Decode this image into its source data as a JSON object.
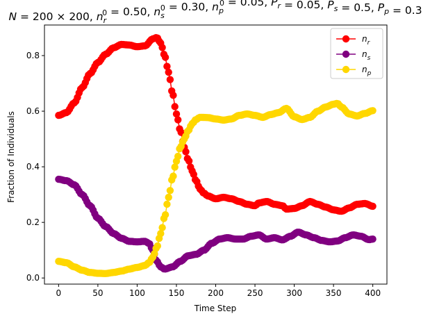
{
  "chart_data": {
    "type": "line",
    "title": "N = 200 × 200, n_r^0 = 0.50, n_s^0 = 0.30, n_p^0 = 0.05, P_r = 0.05, P_s = 0.5, P_p = 0.3",
    "title_parts": [
      {
        "t": "N",
        "i": true
      },
      {
        "t": " = 200 × 200, "
      },
      {
        "t": "n",
        "i": true
      },
      {
        "t": "r",
        "i": true,
        "sub": true
      },
      {
        "t": "0",
        "sup": true
      },
      {
        "t": " = 0.50, "
      },
      {
        "t": "n",
        "i": true
      },
      {
        "t": "s",
        "i": true,
        "sub": true
      },
      {
        "t": "0",
        "sup": true
      },
      {
        "t": " = 0.30, "
      },
      {
        "t": "n",
        "i": true
      },
      {
        "t": "p",
        "i": true,
        "sub": true
      },
      {
        "t": "0",
        "sup": true
      },
      {
        "t": " = 0.05, "
      },
      {
        "t": "P",
        "i": true
      },
      {
        "t": "r",
        "i": true,
        "sub": true
      },
      {
        "t": " = 0.05, "
      },
      {
        "t": "P",
        "i": true
      },
      {
        "t": "s",
        "i": true,
        "sub": true
      },
      {
        "t": " = 0.5, "
      },
      {
        "t": "P",
        "i": true
      },
      {
        "t": "p",
        "i": true,
        "sub": true
      },
      {
        "t": " = 0.3"
      }
    ],
    "xlabel": "Time Step",
    "ylabel": "Fraction of Individuals",
    "xlim": [
      -18,
      418
    ],
    "ylim": [
      -0.022,
      0.91
    ],
    "xticks": [
      0,
      50,
      100,
      150,
      200,
      250,
      300,
      350,
      400
    ],
    "xtick_labels": [
      "0",
      "50",
      "100",
      "150",
      "200",
      "250",
      "300",
      "350",
      "400"
    ],
    "yticks": [
      0.0,
      0.2,
      0.4,
      0.6,
      0.8
    ],
    "ytick_labels": [
      "0.0",
      "0.2",
      "0.4",
      "0.6",
      "0.8"
    ],
    "grid": false,
    "legend_position": "top-right",
    "series": [
      {
        "name": "n_r",
        "label_main": "n",
        "label_sub": "r",
        "color": "#ff0000",
        "points": [
          [
            0,
            0.585
          ],
          [
            10,
            0.595
          ],
          [
            20,
            0.63
          ],
          [
            30,
            0.685
          ],
          [
            40,
            0.735
          ],
          [
            50,
            0.775
          ],
          [
            60,
            0.805
          ],
          [
            70,
            0.828
          ],
          [
            80,
            0.84
          ],
          [
            90,
            0.838
          ],
          [
            100,
            0.832
          ],
          [
            110,
            0.835
          ],
          [
            120,
            0.86
          ],
          [
            125,
            0.865
          ],
          [
            130,
            0.845
          ],
          [
            135,
            0.8
          ],
          [
            140,
            0.74
          ],
          [
            145,
            0.665
          ],
          [
            150,
            0.59
          ],
          [
            155,
            0.53
          ],
          [
            160,
            0.47
          ],
          [
            165,
            0.425
          ],
          [
            170,
            0.385
          ],
          [
            175,
            0.35
          ],
          [
            180,
            0.32
          ],
          [
            185,
            0.305
          ],
          [
            190,
            0.295
          ],
          [
            200,
            0.285
          ],
          [
            210,
            0.29
          ],
          [
            220,
            0.285
          ],
          [
            230,
            0.275
          ],
          [
            240,
            0.265
          ],
          [
            250,
            0.26
          ],
          [
            255,
            0.27
          ],
          [
            265,
            0.275
          ],
          [
            275,
            0.265
          ],
          [
            285,
            0.26
          ],
          [
            290,
            0.248
          ],
          [
            300,
            0.25
          ],
          [
            310,
            0.26
          ],
          [
            320,
            0.275
          ],
          [
            330,
            0.265
          ],
          [
            340,
            0.255
          ],
          [
            350,
            0.245
          ],
          [
            360,
            0.24
          ],
          [
            370,
            0.252
          ],
          [
            380,
            0.265
          ],
          [
            390,
            0.268
          ],
          [
            400,
            0.258
          ]
        ]
      },
      {
        "name": "n_s",
        "label_main": "n",
        "label_sub": "s",
        "color": "#800080",
        "points": [
          [
            0,
            0.355
          ],
          [
            10,
            0.35
          ],
          [
            20,
            0.335
          ],
          [
            30,
            0.3
          ],
          [
            40,
            0.26
          ],
          [
            50,
            0.215
          ],
          [
            60,
            0.185
          ],
          [
            70,
            0.16
          ],
          [
            80,
            0.143
          ],
          [
            90,
            0.132
          ],
          [
            100,
            0.13
          ],
          [
            110,
            0.132
          ],
          [
            115,
            0.125
          ],
          [
            120,
            0.1
          ],
          [
            125,
            0.06
          ],
          [
            130,
            0.04
          ],
          [
            135,
            0.032
          ],
          [
            145,
            0.04
          ],
          [
            155,
            0.06
          ],
          [
            165,
            0.08
          ],
          [
            175,
            0.085
          ],
          [
            185,
            0.1
          ],
          [
            195,
            0.125
          ],
          [
            205,
            0.14
          ],
          [
            215,
            0.145
          ],
          [
            225,
            0.14
          ],
          [
            235,
            0.14
          ],
          [
            245,
            0.15
          ],
          [
            255,
            0.155
          ],
          [
            265,
            0.14
          ],
          [
            275,
            0.145
          ],
          [
            285,
            0.137
          ],
          [
            295,
            0.15
          ],
          [
            305,
            0.165
          ],
          [
            315,
            0.155
          ],
          [
            325,
            0.145
          ],
          [
            335,
            0.135
          ],
          [
            345,
            0.13
          ],
          [
            355,
            0.133
          ],
          [
            365,
            0.145
          ],
          [
            375,
            0.155
          ],
          [
            385,
            0.15
          ],
          [
            395,
            0.138
          ],
          [
            400,
            0.14
          ]
        ]
      },
      {
        "name": "n_p",
        "label_main": "n",
        "label_sub": "p",
        "color": "#ffd700",
        "points": [
          [
            0,
            0.06
          ],
          [
            10,
            0.055
          ],
          [
            20,
            0.04
          ],
          [
            30,
            0.028
          ],
          [
            40,
            0.02
          ],
          [
            50,
            0.017
          ],
          [
            60,
            0.016
          ],
          [
            70,
            0.02
          ],
          [
            80,
            0.025
          ],
          [
            90,
            0.032
          ],
          [
            100,
            0.038
          ],
          [
            110,
            0.045
          ],
          [
            115,
            0.055
          ],
          [
            120,
            0.075
          ],
          [
            125,
            0.11
          ],
          [
            130,
            0.16
          ],
          [
            135,
            0.22
          ],
          [
            140,
            0.29
          ],
          [
            145,
            0.36
          ],
          [
            150,
            0.42
          ],
          [
            155,
            0.47
          ],
          [
            160,
            0.5
          ],
          [
            165,
            0.53
          ],
          [
            170,
            0.555
          ],
          [
            175,
            0.57
          ],
          [
            180,
            0.578
          ],
          [
            190,
            0.577
          ],
          [
            200,
            0.572
          ],
          [
            210,
            0.568
          ],
          [
            220,
            0.572
          ],
          [
            230,
            0.585
          ],
          [
            240,
            0.59
          ],
          [
            250,
            0.585
          ],
          [
            260,
            0.578
          ],
          [
            270,
            0.588
          ],
          [
            280,
            0.595
          ],
          [
            290,
            0.61
          ],
          [
            300,
            0.58
          ],
          [
            310,
            0.57
          ],
          [
            320,
            0.578
          ],
          [
            330,
            0.6
          ],
          [
            340,
            0.615
          ],
          [
            350,
            0.625
          ],
          [
            355,
            0.628
          ],
          [
            360,
            0.615
          ],
          [
            370,
            0.59
          ],
          [
            380,
            0.583
          ],
          [
            390,
            0.592
          ],
          [
            400,
            0.602
          ]
        ]
      }
    ]
  }
}
